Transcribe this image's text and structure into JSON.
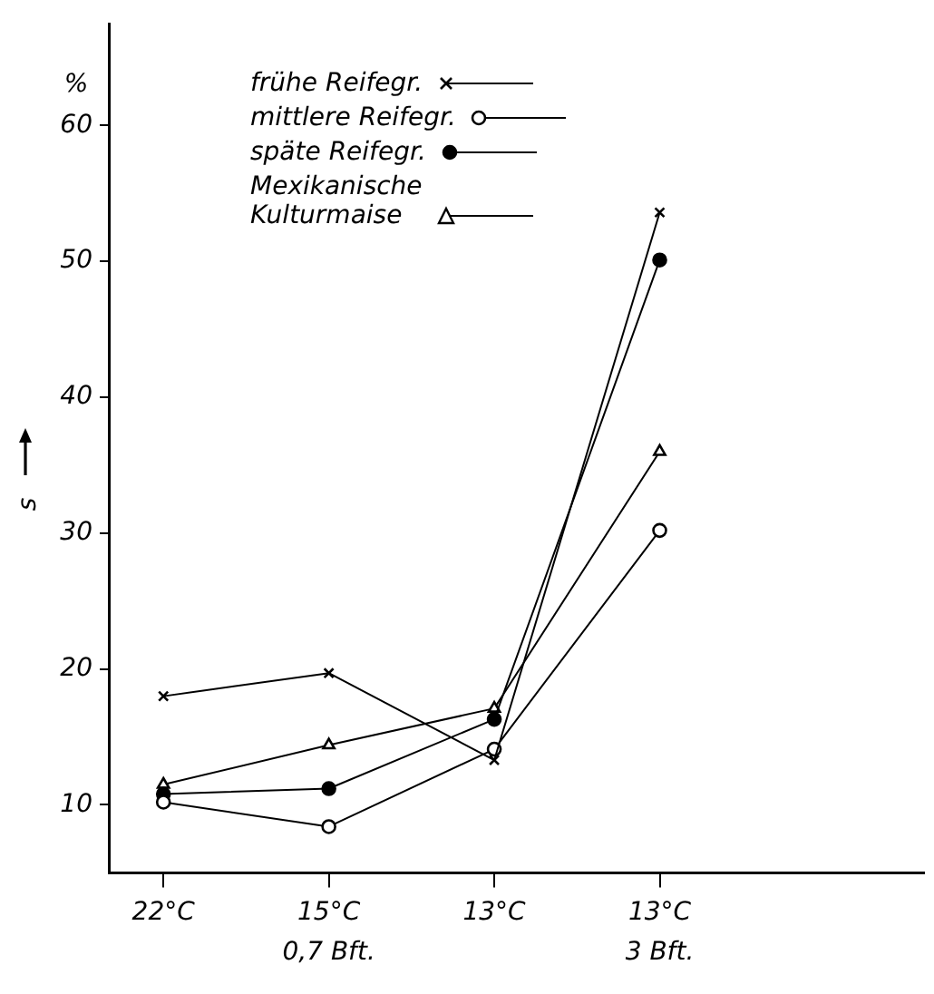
{
  "chart_data": {
    "type": "line",
    "categories": [
      "22°C",
      "15°C",
      "13°C",
      "13°C"
    ],
    "ylabel": "s",
    "ylim": [
      5,
      67.5
    ],
    "yticks": [
      10,
      20,
      30,
      40,
      50,
      60
    ],
    "annotations": [
      "%",
      "0,7 Bft.",
      "3 Bft."
    ],
    "grid": false,
    "legend": "top",
    "line_style": "solid",
    "series": [
      {
        "name": "frühe Reifegr.",
        "color": "#000000",
        "marker": "cross",
        "values": [
          18.0,
          19.7,
          13.3,
          53.6
        ]
      },
      {
        "name": "mittlere Reifegr.",
        "color": "#000000",
        "marker": "circle",
        "values": [
          10.2,
          8.4,
          14.1,
          30.2
        ]
      },
      {
        "name": "späte Reifegr.",
        "color": "#000000",
        "marker": "circle",
        "values": [
          10.8,
          11.2,
          16.3,
          50.1
        ]
      },
      {
        "name": "Mexikanische\nKulturmaise",
        "color": "#000000",
        "marker": "triangle",
        "values": [
          11.5,
          14.4,
          17.1,
          36.0
        ]
      }
    ]
  }
}
